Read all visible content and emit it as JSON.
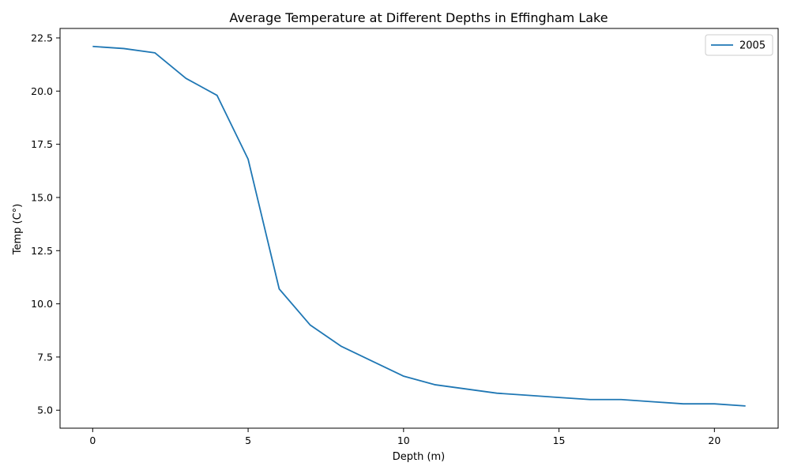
{
  "chart_data": {
    "type": "line",
    "title": "Average Temperature at Different Depths in Effingham Lake",
    "xlabel": "Depth (m)",
    "ylabel": "Temp (C°)",
    "xlim": [
      -1.05,
      22.05
    ],
    "ylim": [
      4.155,
      22.945
    ],
    "xticks": [
      0,
      5,
      10,
      15,
      20
    ],
    "xtick_labels": [
      "0",
      "5",
      "10",
      "15",
      "20"
    ],
    "yticks": [
      5.0,
      7.5,
      10.0,
      12.5,
      15.0,
      17.5,
      20.0,
      22.5
    ],
    "ytick_labels": [
      "5.0",
      "7.5",
      "10.0",
      "12.5",
      "15.0",
      "17.5",
      "20.0",
      "22.5"
    ],
    "grid": false,
    "legend_position": "top-right",
    "series": [
      {
        "name": "2005",
        "color": "#1f77b4",
        "x": [
          0,
          1,
          2,
          3,
          4,
          5,
          6,
          7,
          8,
          9,
          10,
          11,
          12,
          13,
          14,
          15,
          16,
          17,
          18,
          19,
          20,
          21
        ],
        "y": [
          22.1,
          22.0,
          21.8,
          20.6,
          19.8,
          16.8,
          10.7,
          9.0,
          8.0,
          7.3,
          6.6,
          6.2,
          6.0,
          5.8,
          5.7,
          5.6,
          5.5,
          5.5,
          5.4,
          5.3,
          5.3,
          5.2
        ]
      }
    ]
  }
}
